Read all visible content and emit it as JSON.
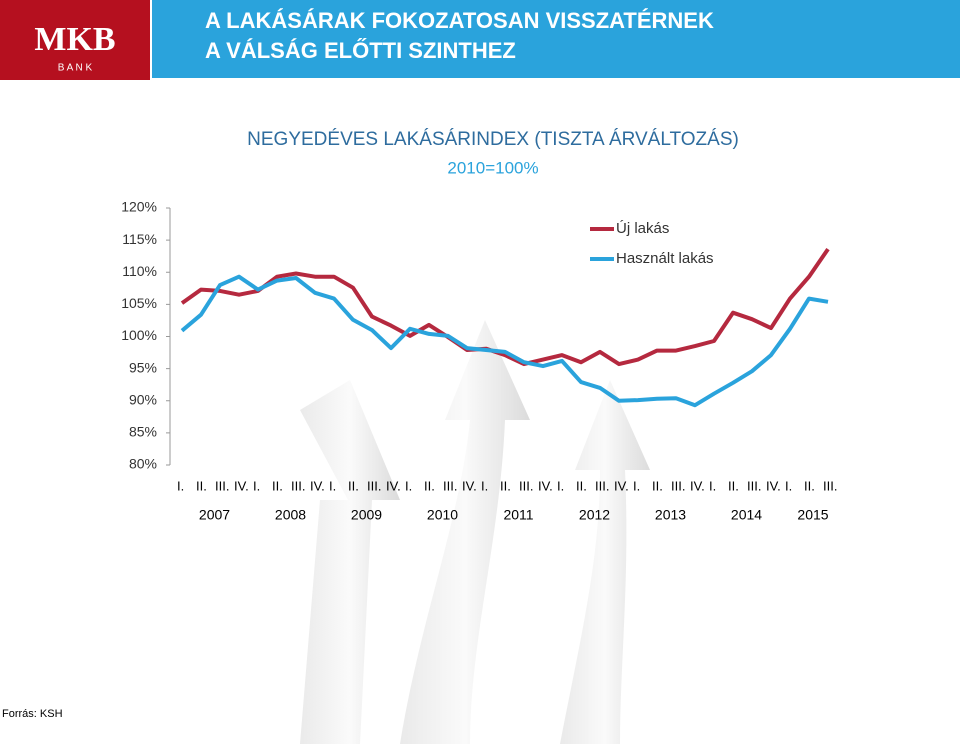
{
  "header": {
    "title_lines": [
      "A LAKÁSÁRAK FOKOZATOSAN VISSZATÉRNEK",
      "A VÁLSÁG ELŐTTI SZINTHEZ"
    ],
    "logo": {
      "name": "MKB",
      "sub": "B A N K"
    }
  },
  "source": "Forrás: KSH",
  "chart_data": {
    "type": "line",
    "title": "NEGYEDÉVES LAKÁSÁRINDEX (TISZTA ÁRVÁLTOZÁS)",
    "subtitle": "2010=100%",
    "categories": [
      "I.",
      "II.",
      "III.",
      "IV.",
      "I.",
      "II.",
      "III.",
      "IV.",
      "I.",
      "II.",
      "III.",
      "IV.",
      "I.",
      "II.",
      "III.",
      "IV.",
      "I.",
      "II.",
      "III.",
      "IV.",
      "I.",
      "II.",
      "III.",
      "IV.",
      "I.",
      "II.",
      "III.",
      "IV.",
      "I.",
      "II.",
      "III.",
      "IV.",
      "I.",
      "II.",
      "III."
    ],
    "years": [
      "2007",
      "2008",
      "2009",
      "2010",
      "2011",
      "2012",
      "2013",
      "2014",
      "2015"
    ],
    "series": [
      {
        "name": "Új lakás",
        "color": "#b5293f",
        "values": [
          105.2,
          107.3,
          107.1,
          106.5,
          107.1,
          109.3,
          109.8,
          109.3,
          109.3,
          107.6,
          103.1,
          101.7,
          100.1,
          101.8,
          99.9,
          97.9,
          98.1,
          97.1,
          95.7,
          96.4,
          97.1,
          96.0,
          97.6,
          95.7,
          96.4,
          97.8,
          97.8,
          98.5,
          99.3,
          103.7,
          102.7,
          101.3,
          105.9,
          109.3,
          113.6
        ]
      },
      {
        "name": "Használt lakás",
        "color": "#2aa3dc",
        "values": [
          100.9,
          103.4,
          108.0,
          109.3,
          107.3,
          108.7,
          109.1,
          106.8,
          105.9,
          102.6,
          101.0,
          98.2,
          101.2,
          100.4,
          100.1,
          98.2,
          97.9,
          97.6,
          96.0,
          95.4,
          96.2,
          92.9,
          92.0,
          90.0,
          90.1,
          90.3,
          90.4,
          89.3,
          91.1,
          92.8,
          94.6,
          97.1,
          101.2,
          105.9,
          105.4
        ]
      }
    ],
    "ylim": [
      80,
      120
    ],
    "yticks": [
      {
        "value": 80,
        "label": "80%"
      },
      {
        "value": 85,
        "label": "85%"
      },
      {
        "value": 90,
        "label": "90%"
      },
      {
        "value": 95,
        "label": "95%"
      },
      {
        "value": 100,
        "label": "100%"
      },
      {
        "value": 105,
        "label": "105%"
      },
      {
        "value": 110,
        "label": "110%"
      },
      {
        "value": 115,
        "label": "115%"
      },
      {
        "value": 120,
        "label": "120%"
      }
    ],
    "legend": "top-right"
  }
}
